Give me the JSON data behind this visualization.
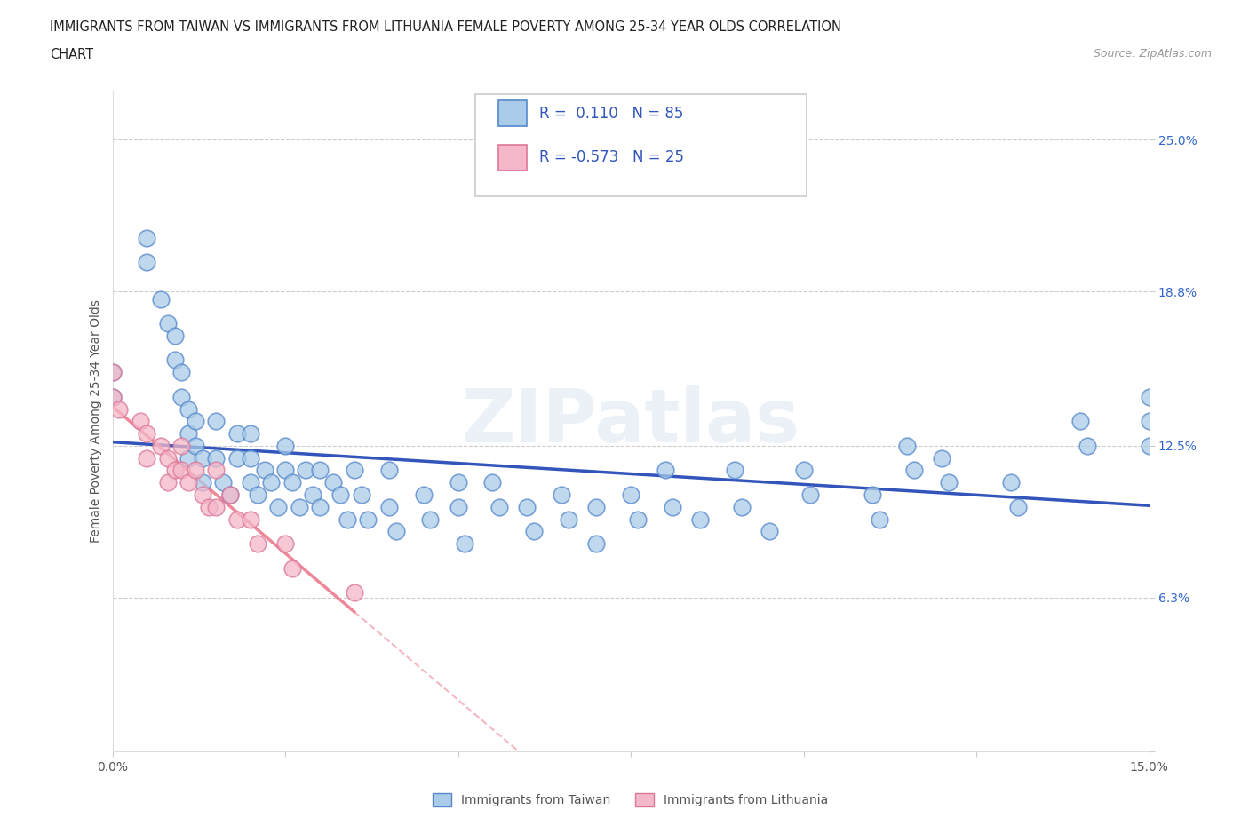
{
  "title_line1": "IMMIGRANTS FROM TAIWAN VS IMMIGRANTS FROM LITHUANIA FEMALE POVERTY AMONG 25-34 YEAR OLDS CORRELATION",
  "title_line2": "CHART",
  "source_text": "Source: ZipAtlas.com",
  "ylabel": "Female Poverty Among 25-34 Year Olds",
  "xlim": [
    0.0,
    0.15
  ],
  "ylim": [
    0.0,
    0.27
  ],
  "ytick_vals": [
    0.0,
    0.063,
    0.125,
    0.188,
    0.25
  ],
  "ytick_labels": [
    "",
    "6.3%",
    "12.5%",
    "18.8%",
    "25.0%"
  ],
  "xtick_vals": [
    0.0,
    0.025,
    0.05,
    0.075,
    0.1,
    0.125,
    0.15
  ],
  "xtick_labels": [
    "0.0%",
    "",
    "",
    "",
    "",
    "",
    "15.0%"
  ],
  "watermark_text": "ZIPatlas",
  "taiwan_color": "#aacce8",
  "taiwan_edge": "#5588cc",
  "lithuania_color": "#f4b8c8",
  "lithuania_edge": "#dd7799",
  "taiwan_line_color": "#3355bb",
  "lithuania_line_color": "#ee8899",
  "taiwan_points_x": [
    0.0,
    0.0,
    0.005,
    0.005,
    0.007,
    0.008,
    0.009,
    0.009,
    0.01,
    0.01,
    0.011,
    0.011,
    0.011,
    0.012,
    0.012,
    0.013,
    0.013,
    0.015,
    0.015,
    0.016,
    0.017,
    0.018,
    0.018,
    0.02,
    0.02,
    0.02,
    0.021,
    0.022,
    0.023,
    0.024,
    0.025,
    0.025,
    0.026,
    0.027,
    0.028,
    0.029,
    0.03,
    0.03,
    0.032,
    0.033,
    0.034,
    0.035,
    0.036,
    0.037,
    0.04,
    0.04,
    0.041,
    0.045,
    0.046,
    0.05,
    0.05,
    0.051,
    0.055,
    0.056,
    0.06,
    0.061,
    0.065,
    0.066,
    0.07,
    0.07,
    0.075,
    0.076,
    0.08,
    0.081,
    0.085,
    0.09,
    0.091,
    0.095,
    0.1,
    0.101,
    0.11,
    0.111,
    0.115,
    0.116,
    0.12,
    0.121,
    0.13,
    0.131,
    0.14,
    0.141,
    0.15,
    0.15,
    0.15
  ],
  "taiwan_points_y": [
    0.155,
    0.145,
    0.21,
    0.2,
    0.185,
    0.175,
    0.17,
    0.16,
    0.155,
    0.145,
    0.14,
    0.13,
    0.12,
    0.135,
    0.125,
    0.12,
    0.11,
    0.135,
    0.12,
    0.11,
    0.105,
    0.13,
    0.12,
    0.13,
    0.12,
    0.11,
    0.105,
    0.115,
    0.11,
    0.1,
    0.125,
    0.115,
    0.11,
    0.1,
    0.115,
    0.105,
    0.115,
    0.1,
    0.11,
    0.105,
    0.095,
    0.115,
    0.105,
    0.095,
    0.115,
    0.1,
    0.09,
    0.105,
    0.095,
    0.11,
    0.1,
    0.085,
    0.11,
    0.1,
    0.1,
    0.09,
    0.105,
    0.095,
    0.1,
    0.085,
    0.105,
    0.095,
    0.115,
    0.1,
    0.095,
    0.115,
    0.1,
    0.09,
    0.115,
    0.105,
    0.105,
    0.095,
    0.125,
    0.115,
    0.12,
    0.11,
    0.11,
    0.1,
    0.135,
    0.125,
    0.145,
    0.135,
    0.125
  ],
  "lithuania_points_x": [
    0.0,
    0.0,
    0.001,
    0.004,
    0.005,
    0.005,
    0.007,
    0.008,
    0.008,
    0.009,
    0.01,
    0.01,
    0.011,
    0.012,
    0.013,
    0.014,
    0.015,
    0.015,
    0.017,
    0.018,
    0.02,
    0.021,
    0.025,
    0.026,
    0.035
  ],
  "lithuania_points_y": [
    0.155,
    0.145,
    0.14,
    0.135,
    0.13,
    0.12,
    0.125,
    0.12,
    0.11,
    0.115,
    0.125,
    0.115,
    0.11,
    0.115,
    0.105,
    0.1,
    0.115,
    0.1,
    0.105,
    0.095,
    0.095,
    0.085,
    0.085,
    0.075,
    0.065
  ]
}
